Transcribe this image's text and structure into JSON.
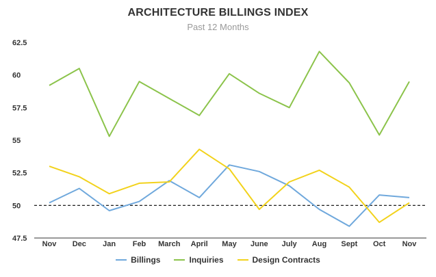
{
  "chart_data": {
    "type": "line",
    "title": "ARCHITECTURE BILLINGS INDEX",
    "subtitle": "Past 12 Months",
    "categories": [
      "Nov",
      "Dec",
      "Jan",
      "Feb",
      "March",
      "April",
      "May",
      "June",
      "July",
      "Aug",
      "Sept",
      "Oct",
      "Nov"
    ],
    "yticks": [
      "47.5",
      "50",
      "52.5",
      "55",
      "57.5",
      "60",
      "62.5"
    ],
    "ylim": [
      47.5,
      62.5
    ],
    "reference_line": 50,
    "grid": false,
    "legend_position": "bottom",
    "series": [
      {
        "name": "Billings",
        "color": "#6fa8dc",
        "values": [
          50.2,
          51.3,
          49.6,
          50.3,
          51.9,
          50.6,
          53.1,
          52.6,
          51.5,
          49.7,
          48.4,
          50.8,
          50.6
        ]
      },
      {
        "name": "Inquiries",
        "color": "#8bc34a",
        "values": [
          59.2,
          60.5,
          55.3,
          59.5,
          58.2,
          56.9,
          60.1,
          58.6,
          57.5,
          61.8,
          59.4,
          55.4,
          59.5
        ]
      },
      {
        "name": "Design Contracts",
        "color": "#f2d21b",
        "values": [
          53.0,
          52.2,
          50.9,
          51.7,
          51.8,
          54.3,
          52.8,
          49.7,
          51.8,
          52.7,
          51.4,
          48.7,
          50.2
        ]
      }
    ]
  }
}
